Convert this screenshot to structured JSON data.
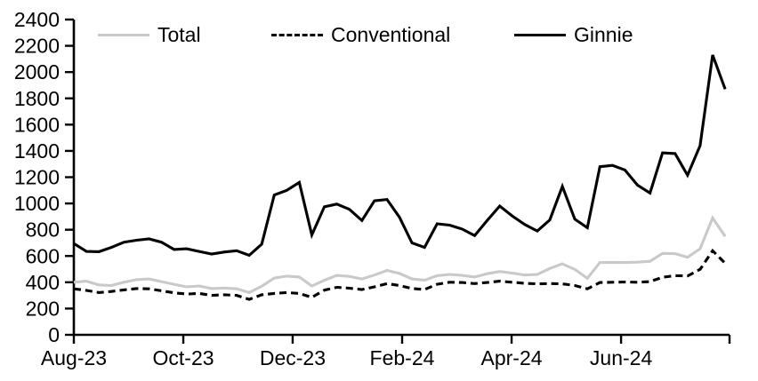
{
  "page": {
    "background": "#ffffff"
  },
  "legend": {
    "items": [
      {
        "label": "Total",
        "color": "#c9c9c9",
        "style": "solid"
      },
      {
        "label": "Conventional",
        "color": "#000000",
        "style": "dashed"
      },
      {
        "label": "Ginnie",
        "color": "#000000",
        "style": "solid"
      }
    ]
  },
  "chart_data": {
    "type": "line",
    "title": "",
    "xlabel": "",
    "ylabel": "",
    "ylim": [
      0,
      2400
    ],
    "y_ticks": [
      0,
      200,
      400,
      600,
      800,
      1000,
      1200,
      1400,
      1600,
      1800,
      2000,
      2200,
      2400
    ],
    "x_tick_labels": [
      "Aug-23",
      "Oct-23",
      "Dec-23",
      "Feb-24",
      "Apr-24",
      "Jun-24",
      ""
    ],
    "grid": false,
    "legend_position": "top-inside",
    "x_unit": "weekly points from Aug-23",
    "layout": {
      "x_tick_week_positions": [
        0,
        8.74,
        17.47,
        26.21,
        34.95,
        43.69,
        52.35
      ],
      "weeks_total": 52.35
    },
    "series": [
      {
        "name": "Total",
        "color": "#c9c9c9",
        "dash": "solid",
        "values": [
          400,
          408,
          380,
          375,
          400,
          420,
          425,
          405,
          385,
          365,
          372,
          352,
          356,
          350,
          322,
          370,
          432,
          447,
          440,
          372,
          415,
          452,
          445,
          425,
          455,
          490,
          467,
          425,
          415,
          450,
          460,
          452,
          440,
          465,
          482,
          470,
          455,
          460,
          505,
          540,
          498,
          430,
          550,
          552,
          550,
          553,
          560,
          620,
          618,
          590,
          655,
          890,
          750
        ]
      },
      {
        "name": "Conventional",
        "color": "#000000",
        "dash": "dashed",
        "values": [
          350,
          338,
          322,
          330,
          342,
          352,
          350,
          335,
          320,
          310,
          315,
          300,
          305,
          300,
          270,
          305,
          315,
          322,
          315,
          285,
          340,
          362,
          355,
          345,
          365,
          390,
          375,
          352,
          345,
          385,
          400,
          398,
          390,
          398,
          408,
          400,
          392,
          388,
          390,
          388,
          375,
          350,
          398,
          400,
          402,
          400,
          405,
          438,
          450,
          448,
          498,
          640,
          545
        ]
      },
      {
        "name": "Ginnie",
        "color": "#000000",
        "dash": "solid",
        "values": [
          695,
          635,
          633,
          665,
          705,
          720,
          730,
          705,
          650,
          655,
          635,
          615,
          630,
          640,
          605,
          690,
          1065,
          1100,
          1160,
          760,
          975,
          995,
          955,
          870,
          1020,
          1030,
          895,
          700,
          665,
          845,
          835,
          805,
          755,
          870,
          980,
          905,
          840,
          790,
          875,
          1130,
          880,
          815,
          1280,
          1290,
          1255,
          1140,
          1080,
          1385,
          1380,
          1215,
          1440,
          2130,
          1870
        ]
      }
    ]
  }
}
